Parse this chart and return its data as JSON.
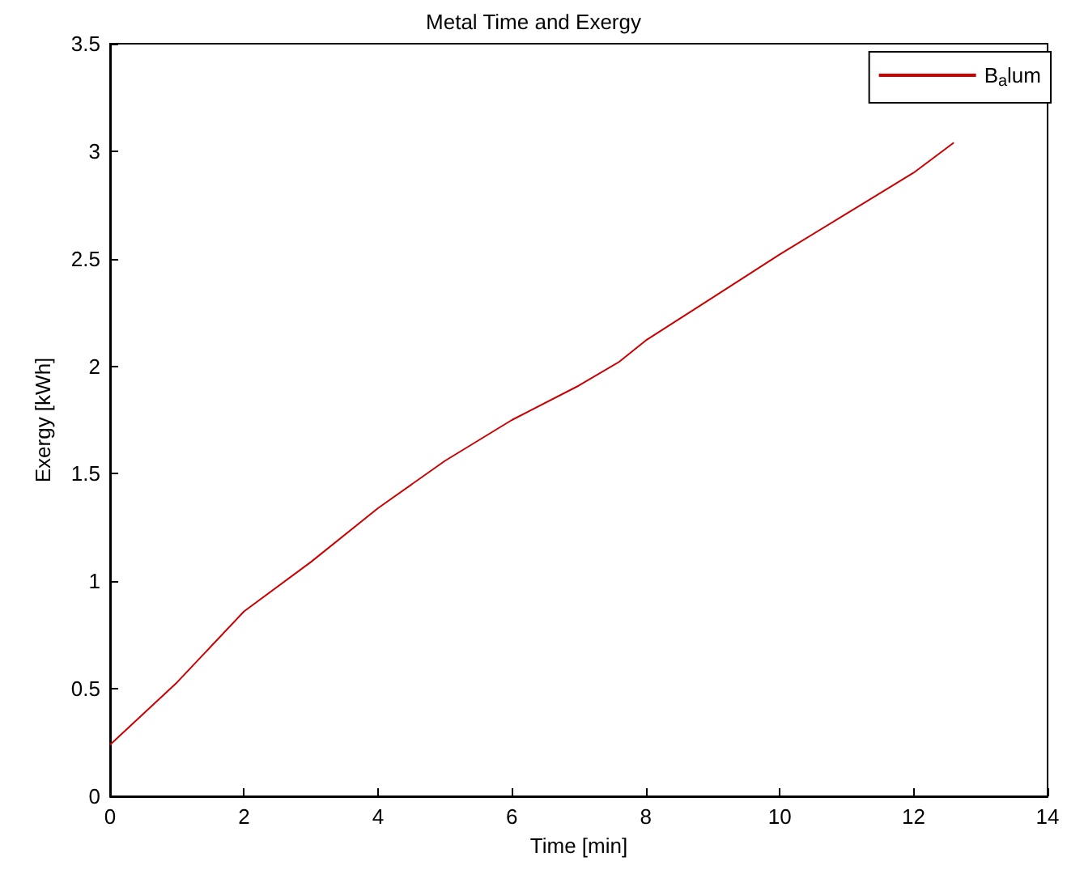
{
  "chart_data": {
    "type": "line",
    "title": "Metal Time and Exergy",
    "xlabel": "Time [min]",
    "ylabel": "Exergy [kWh]",
    "x": [
      0,
      1,
      2,
      3,
      4,
      5,
      6,
      7,
      7.6,
      8,
      9,
      10,
      11,
      12,
      12.6
    ],
    "series": [
      {
        "name": "B$_{a}$lum",
        "color": "#cc0000",
        "values": [
          0.24,
          0.53,
          0.86,
          1.09,
          1.34,
          1.56,
          1.75,
          1.91,
          2.02,
          2.12,
          2.32,
          2.52,
          2.71,
          2.9,
          3.04
        ]
      }
    ],
    "xlim": [
      0,
      14
    ],
    "xticks": [
      0,
      2,
      4,
      6,
      8,
      10,
      12,
      14
    ],
    "ylim": [
      0,
      3.5
    ],
    "yticks": [
      0,
      0.5,
      1,
      1.5,
      2,
      2.5,
      3,
      3.5
    ],
    "grid": false,
    "legend": "top right",
    "marker": "none",
    "line_style": "solid"
  }
}
